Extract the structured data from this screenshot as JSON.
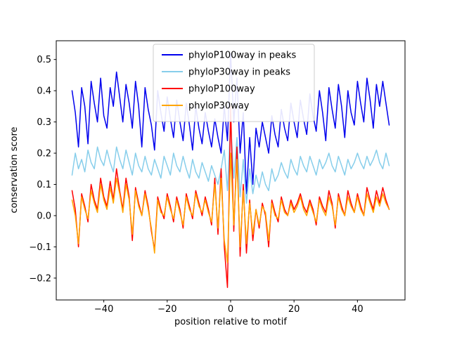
{
  "figure": {
    "background": "#ffffff"
  },
  "chart_data": {
    "type": "line",
    "title": "",
    "xlabel": "position relative to motif",
    "ylabel": "conservation score",
    "xlim": [
      -55,
      55
    ],
    "ylim": [
      -0.27,
      0.56
    ],
    "xticks": [
      -40,
      -20,
      0,
      20,
      40
    ],
    "yticks": [
      -0.2,
      -0.1,
      0.0,
      0.1,
      0.2,
      0.3,
      0.4,
      0.5
    ],
    "grid": false,
    "legend_position": "upper center inside axes",
    "legend_border_color": "#cccccc",
    "x_start": -50,
    "x_step": 1,
    "series": [
      {
        "name": "phyloP100way in peaks",
        "color": "#0000ee",
        "values": [
          0.4,
          0.33,
          0.22,
          0.41,
          0.35,
          0.23,
          0.43,
          0.36,
          0.3,
          0.44,
          0.32,
          0.28,
          0.41,
          0.35,
          0.46,
          0.38,
          0.3,
          0.42,
          0.36,
          0.28,
          0.43,
          0.35,
          0.22,
          0.41,
          0.34,
          0.29,
          0.21,
          0.4,
          0.33,
          0.27,
          0.38,
          0.31,
          0.25,
          0.37,
          0.3,
          0.24,
          0.36,
          0.29,
          0.21,
          0.35,
          0.28,
          0.23,
          0.33,
          0.27,
          0.22,
          0.31,
          0.25,
          0.2,
          0.35,
          0.24,
          0.52,
          0.3,
          0.44,
          0.2,
          0.33,
          0.07,
          0.25,
          0.1,
          0.28,
          0.22,
          0.3,
          0.25,
          0.2,
          0.32,
          0.26,
          0.22,
          0.34,
          0.28,
          0.24,
          0.36,
          0.3,
          0.25,
          0.37,
          0.31,
          0.26,
          0.39,
          0.32,
          0.27,
          0.4,
          0.33,
          0.24,
          0.41,
          0.34,
          0.28,
          0.42,
          0.35,
          0.25,
          0.4,
          0.33,
          0.29,
          0.43,
          0.36,
          0.3,
          0.44,
          0.37,
          0.28,
          0.42,
          0.35,
          0.43,
          0.36,
          0.29
        ]
      },
      {
        "name": "phyloP30way in peaks",
        "color": "#87ceeb",
        "values": [
          0.13,
          0.2,
          0.15,
          0.18,
          0.14,
          0.21,
          0.17,
          0.15,
          0.22,
          0.18,
          0.16,
          0.21,
          0.17,
          0.14,
          0.22,
          0.18,
          0.15,
          0.21,
          0.17,
          0.13,
          0.2,
          0.16,
          0.14,
          0.19,
          0.15,
          0.13,
          0.18,
          0.15,
          0.12,
          0.19,
          0.16,
          0.13,
          0.2,
          0.16,
          0.14,
          0.19,
          0.15,
          0.12,
          0.18,
          0.14,
          0.12,
          0.17,
          0.14,
          0.11,
          0.16,
          0.13,
          0.1,
          0.15,
          0.21,
          0.08,
          0.3,
          0.12,
          0.25,
          0.06,
          0.18,
          0.04,
          0.15,
          0.07,
          0.13,
          0.09,
          0.14,
          0.1,
          0.08,
          0.15,
          0.11,
          0.13,
          0.17,
          0.14,
          0.12,
          0.18,
          0.15,
          0.13,
          0.19,
          0.16,
          0.14,
          0.19,
          0.16,
          0.13,
          0.18,
          0.15,
          0.17,
          0.2,
          0.16,
          0.14,
          0.19,
          0.16,
          0.13,
          0.18,
          0.15,
          0.17,
          0.2,
          0.17,
          0.15,
          0.19,
          0.16,
          0.18,
          0.21,
          0.17,
          0.15,
          0.2,
          0.16
        ]
      },
      {
        "name": "phyloP100way",
        "color": "#ff0000",
        "values": [
          0.08,
          0.02,
          -0.1,
          0.07,
          0.03,
          -0.02,
          0.1,
          0.05,
          0.02,
          0.12,
          0.06,
          0.03,
          0.11,
          0.05,
          0.15,
          0.08,
          0.02,
          0.12,
          0.06,
          -0.08,
          0.09,
          0.04,
          0.0,
          0.08,
          0.03,
          -0.05,
          -0.11,
          0.06,
          0.02,
          -0.01,
          0.07,
          0.03,
          -0.02,
          0.06,
          0.02,
          -0.04,
          0.07,
          0.03,
          -0.01,
          0.08,
          0.04,
          0.0,
          0.06,
          0.02,
          -0.03,
          0.12,
          -0.06,
          0.15,
          -0.1,
          -0.23,
          0.35,
          -0.05,
          0.22,
          -0.13,
          0.1,
          -0.12,
          0.05,
          -0.08,
          0.02,
          -0.04,
          0.04,
          0.0,
          -0.1,
          0.05,
          0.01,
          -0.02,
          0.06,
          0.02,
          0.0,
          0.05,
          0.02,
          0.04,
          0.07,
          0.03,
          0.01,
          0.05,
          0.02,
          -0.03,
          0.06,
          0.03,
          0.01,
          0.08,
          0.04,
          -0.04,
          0.07,
          0.03,
          0.0,
          0.08,
          0.04,
          0.01,
          0.07,
          0.03,
          0.0,
          0.09,
          0.05,
          0.02,
          0.08,
          0.04,
          0.09,
          0.05,
          0.02
        ]
      },
      {
        "name": "phyloP30way",
        "color": "#ffa500",
        "values": [
          0.05,
          0.0,
          -0.09,
          0.06,
          0.02,
          -0.01,
          0.08,
          0.04,
          0.01,
          0.1,
          0.05,
          0.02,
          0.09,
          0.04,
          0.12,
          0.07,
          0.01,
          0.1,
          0.05,
          -0.06,
          0.08,
          0.03,
          0.0,
          0.07,
          0.02,
          -0.04,
          -0.12,
          0.05,
          0.01,
          0.0,
          0.06,
          0.02,
          -0.01,
          0.05,
          0.01,
          -0.03,
          0.06,
          0.02,
          0.0,
          0.07,
          0.03,
          0.01,
          0.05,
          0.01,
          -0.02,
          0.1,
          -0.04,
          0.12,
          -0.08,
          -0.15,
          0.2,
          -0.03,
          0.18,
          -0.1,
          0.08,
          -0.09,
          0.04,
          -0.06,
          0.02,
          -0.03,
          0.03,
          0.01,
          -0.08,
          0.04,
          0.0,
          -0.01,
          0.05,
          0.01,
          0.0,
          0.04,
          0.01,
          0.03,
          0.06,
          0.02,
          0.0,
          0.04,
          0.01,
          -0.02,
          0.05,
          0.02,
          0.0,
          0.06,
          0.03,
          -0.03,
          0.06,
          0.02,
          0.0,
          0.06,
          0.03,
          0.01,
          0.06,
          0.02,
          0.0,
          0.07,
          0.04,
          0.01,
          0.06,
          0.03,
          0.07,
          0.04,
          0.02
        ]
      }
    ]
  }
}
